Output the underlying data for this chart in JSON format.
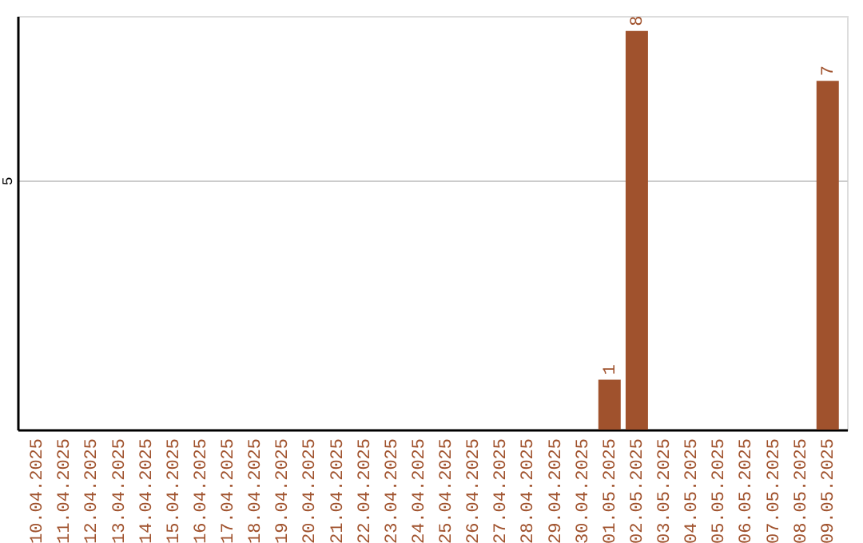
{
  "chart_data": {
    "type": "bar",
    "categories": [
      "10.04.2025",
      "11.04.2025",
      "12.04.2025",
      "13.04.2025",
      "14.04.2025",
      "15.04.2025",
      "16.04.2025",
      "17.04.2025",
      "18.04.2025",
      "19.04.2025",
      "20.04.2025",
      "21.04.2025",
      "22.04.2025",
      "23.04.2025",
      "24.04.2025",
      "25.04.2025",
      "26.04.2025",
      "27.04.2025",
      "28.04.2025",
      "29.04.2025",
      "30.04.2025",
      "01.05.2025",
      "02.05.2025",
      "03.05.2025",
      "04.05.2025",
      "05.05.2025",
      "06.05.2025",
      "07.05.2025",
      "08.05.2025",
      "09.05.2025"
    ],
    "values": [
      null,
      null,
      null,
      null,
      null,
      null,
      null,
      null,
      null,
      null,
      null,
      null,
      null,
      null,
      null,
      null,
      null,
      null,
      null,
      null,
      null,
      1,
      8,
      null,
      null,
      null,
      null,
      null,
      null,
      7
    ],
    "color": "#a0522d",
    "ylim": [
      0,
      8.3
    ],
    "yticks": [
      {
        "value": 0,
        "label": null
      },
      5
    ],
    "grid": "y",
    "data_labels": true
  }
}
